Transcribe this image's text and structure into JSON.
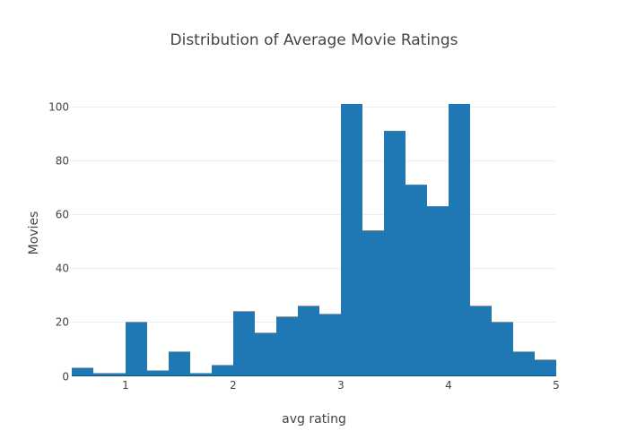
{
  "chart_data": {
    "type": "bar",
    "title": "Distribution of Average Movie Ratings",
    "xlabel": "avg rating",
    "ylabel": "Movies",
    "xlim": [
      0.5,
      5
    ],
    "ylim": [
      0,
      101
    ],
    "bin_width": 0.2,
    "bar_color": "#1f77b4",
    "grid": true,
    "xticks": [
      1,
      2,
      3,
      4,
      5
    ],
    "yticks": [
      0,
      20,
      40,
      60,
      80,
      100
    ],
    "bins": [
      {
        "x0": 0.5,
        "x1": 0.7,
        "count": 3
      },
      {
        "x0": 0.7,
        "x1": 0.9,
        "count": 1
      },
      {
        "x0": 0.9,
        "x1": 1.0,
        "count": 1
      },
      {
        "x0": 1.0,
        "x1": 1.2,
        "count": 20
      },
      {
        "x0": 1.2,
        "x1": 1.4,
        "count": 2
      },
      {
        "x0": 1.4,
        "x1": 1.6,
        "count": 9
      },
      {
        "x0": 1.6,
        "x1": 1.8,
        "count": 1
      },
      {
        "x0": 1.8,
        "x1": 2.0,
        "count": 4
      },
      {
        "x0": 2.0,
        "x1": 2.2,
        "count": 24
      },
      {
        "x0": 2.2,
        "x1": 2.4,
        "count": 16
      },
      {
        "x0": 2.4,
        "x1": 2.6,
        "count": 22
      },
      {
        "x0": 2.6,
        "x1": 2.8,
        "count": 26
      },
      {
        "x0": 2.8,
        "x1": 3.0,
        "count": 23
      },
      {
        "x0": 3.0,
        "x1": 3.2,
        "count": 101
      },
      {
        "x0": 3.2,
        "x1": 3.4,
        "count": 54
      },
      {
        "x0": 3.4,
        "x1": 3.6,
        "count": 91
      },
      {
        "x0": 3.6,
        "x1": 3.8,
        "count": 71
      },
      {
        "x0": 3.8,
        "x1": 4.0,
        "count": 63
      },
      {
        "x0": 4.0,
        "x1": 4.2,
        "count": 101
      },
      {
        "x0": 4.2,
        "x1": 4.4,
        "count": 26
      },
      {
        "x0": 4.4,
        "x1": 4.6,
        "count": 20
      },
      {
        "x0": 4.6,
        "x1": 4.8,
        "count": 9
      },
      {
        "x0": 4.8,
        "x1": 5.0,
        "count": 6
      }
    ]
  }
}
